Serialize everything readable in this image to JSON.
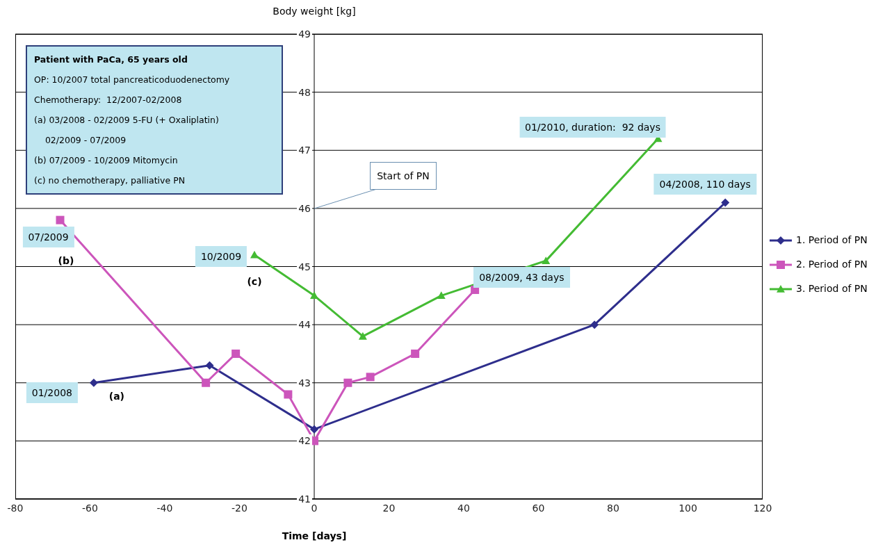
{
  "chart_data": {
    "type": "line",
    "xlabel": "Time [days]",
    "ylabel": "Body weight [kg]",
    "xlim": [
      -80,
      120
    ],
    "xticks": [
      -80,
      -60,
      -40,
      -20,
      0,
      20,
      40,
      60,
      80,
      100,
      120
    ],
    "ylim": [
      41,
      49
    ],
    "yticks": [
      41,
      42,
      43,
      44,
      45,
      46,
      47,
      48,
      49
    ],
    "grid": "y",
    "legend": "right",
    "series": [
      {
        "name": "1. Period of PN",
        "color": "#2e2e8c",
        "marker": "diamond",
        "x": [
          -59,
          -28,
          0,
          75,
          110
        ],
        "values": [
          43.0,
          43.3,
          42.2,
          44.0,
          46.1
        ]
      },
      {
        "name": "2. Period of PN",
        "color": "#cc55bb",
        "marker": "square",
        "x": [
          -68,
          -29,
          -21,
          -7,
          0,
          9,
          15,
          27,
          43
        ],
        "values": [
          45.8,
          43.0,
          43.5,
          42.8,
          42.0,
          43.0,
          43.1,
          43.5,
          44.6
        ]
      },
      {
        "name": "3. Period of PN",
        "color": "#44bb33",
        "marker": "triangle",
        "x": [
          -16,
          0,
          13,
          34,
          62,
          92
        ],
        "values": [
          45.2,
          44.5,
          43.8,
          44.5,
          45.1,
          47.2
        ]
      }
    ],
    "annotations": [
      {
        "text": "07/2009",
        "x": -68,
        "y": 45.8
      },
      {
        "text": "01/2008",
        "x": -59,
        "y": 43.0
      },
      {
        "text": "(a)",
        "x": -59,
        "y": 43.0
      },
      {
        "text": "10/2009",
        "x": -16,
        "y": 45.2
      },
      {
        "text": "08/2009, 43 days",
        "x": 43,
        "y": 44.6
      },
      {
        "text": "01/2010, duration:  92 days",
        "x": 92,
        "y": 47.2
      },
      {
        "text": "04/2008, 110 days",
        "x": 110,
        "y": 46.1
      },
      "(b)",
      "(c)",
      "Start of PN",
      "Patient with PaCa, 65 years old",
      "OP: 10/2007 total pancreaticoduodenectomy",
      "Chemotherapy:  12/2007-02/2008",
      "(a) 03/2008 - 02/2009 5-FU (+ Oxaliplatin)",
      "    02/2009 - 07/2009",
      "(b) 07/2009 - 10/2009 Mitomycin",
      "(c) no chemotherapy, palliative PN"
    ]
  }
}
